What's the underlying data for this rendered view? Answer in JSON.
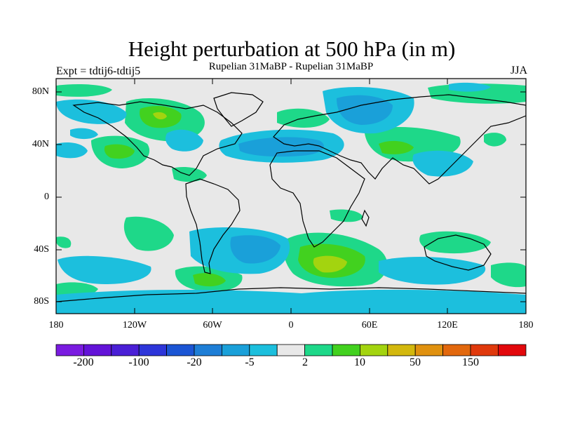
{
  "title": "Height perturbation at 500 hPa (in m)",
  "subtitle": "Rupelian  31MaBP - Rupelian  31MaBP",
  "expt_label": "Expt = tdtij6-tdtij5",
  "season": "JJA",
  "lat_labels": [
    "80N",
    "40N",
    "0",
    "40S",
    "80S"
  ],
  "lon_labels": [
    "180",
    "120W",
    "60W",
    "0",
    "60E",
    "120E",
    "180"
  ],
  "colorbar": {
    "colors": [
      "#7a1be0",
      "#6313d8",
      "#4a1fd6",
      "#2d35d9",
      "#1b55d4",
      "#1e7ed6",
      "#1aa0d9",
      "#1cbfdd",
      "#e8e8e8",
      "#1ed889",
      "#42d11f",
      "#a3d40f",
      "#d3b80d",
      "#e0910f",
      "#e2680d",
      "#e0390c",
      "#e2080c"
    ],
    "labels": [
      "-200",
      "-100",
      "-20",
      "-5",
      "2",
      "10",
      "50",
      "150"
    ]
  },
  "colors": {
    "neg_light": "#1cbfdd",
    "neg_mid": "#1aa0d9",
    "neutral": "#e8e8e8",
    "pos_light": "#1ed889",
    "pos_mid": "#42d11f",
    "pos_strong": "#a3d40f"
  }
}
